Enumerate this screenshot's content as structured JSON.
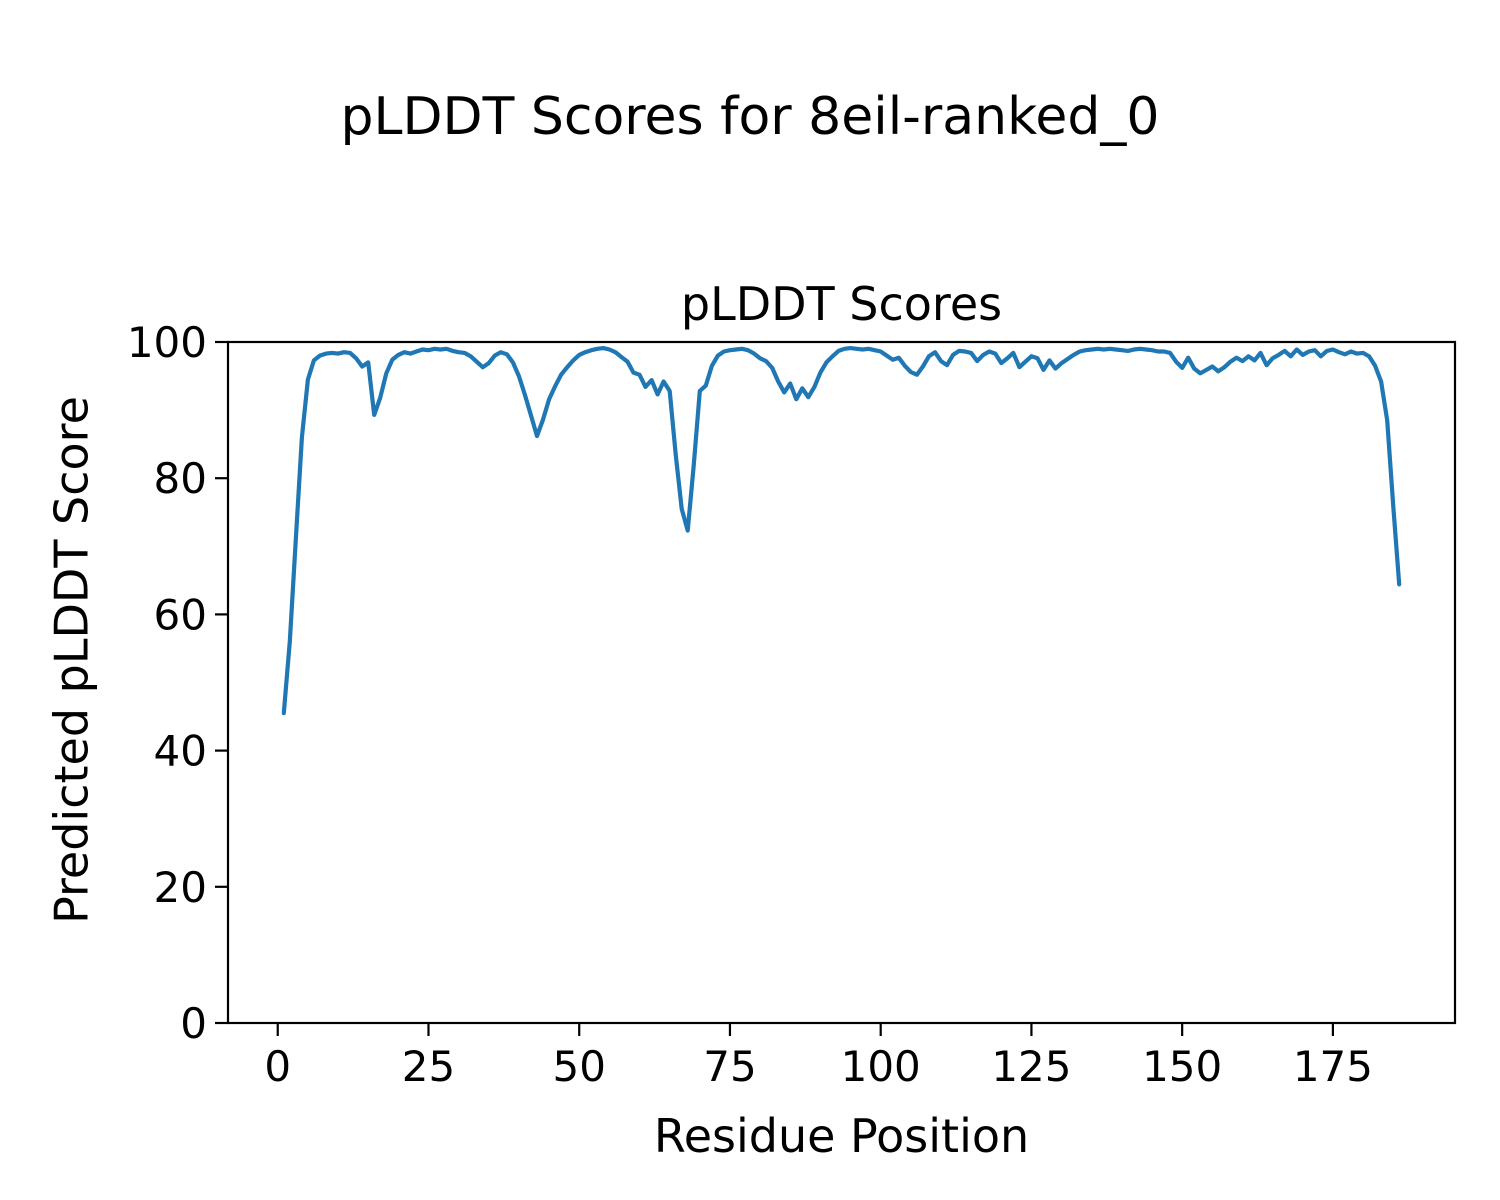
{
  "figure": {
    "title": "pLDDT Scores for 8eil-ranked_0"
  },
  "chart_data": {
    "type": "line",
    "title": "pLDDT Scores",
    "xlabel": "Residue Position",
    "ylabel": "Predicted pLDDT Score",
    "grid": false,
    "legend": "none",
    "line_color": "#1f77b4",
    "axis_color": "#000000",
    "background_color": "#ffffff",
    "xlim": [
      -8.25,
      195.25
    ],
    "ylim": [
      0,
      100
    ],
    "xticks": [
      0,
      25,
      50,
      75,
      100,
      125,
      150,
      175
    ],
    "yticks": [
      0,
      20,
      40,
      60,
      80,
      100
    ],
    "x_start": 1,
    "x_step": 1,
    "series": [
      {
        "name": "pLDDT",
        "values": [
          45.5,
          56.0,
          71.0,
          86.0,
          94.5,
          97.3,
          98.0,
          98.3,
          98.4,
          98.3,
          98.5,
          98.4,
          97.6,
          96.4,
          97.0,
          89.3,
          91.8,
          95.4,
          97.4,
          98.1,
          98.5,
          98.3,
          98.6,
          98.9,
          98.8,
          99.0,
          98.9,
          99.0,
          98.7,
          98.5,
          98.4,
          97.9,
          97.1,
          96.3,
          96.9,
          98.0,
          98.5,
          98.2,
          97.0,
          95.0,
          92.2,
          89.2,
          86.2,
          88.6,
          91.6,
          93.5,
          95.2,
          96.3,
          97.3,
          98.1,
          98.5,
          98.8,
          99.0,
          99.1,
          98.9,
          98.5,
          97.8,
          97.1,
          95.5,
          95.2,
          93.4,
          94.4,
          92.3,
          94.2,
          92.8,
          83.5,
          75.5,
          72.3,
          82.0,
          92.8,
          93.6,
          96.5,
          98.0,
          98.6,
          98.8,
          98.9,
          99.0,
          98.8,
          98.3,
          97.6,
          97.2,
          96.2,
          94.2,
          92.6,
          93.9,
          91.6,
          93.2,
          91.9,
          93.4,
          95.5,
          97.0,
          97.9,
          98.7,
          99.0,
          99.1,
          99.0,
          98.9,
          99.0,
          98.8,
          98.6,
          98.0,
          97.4,
          97.7,
          96.5,
          95.6,
          95.2,
          96.4,
          97.9,
          98.5,
          97.2,
          96.6,
          98.1,
          98.7,
          98.6,
          98.4,
          97.2,
          98.1,
          98.6,
          98.3,
          96.9,
          97.6,
          98.4,
          96.3,
          97.1,
          97.9,
          97.6,
          95.9,
          97.3,
          96.1,
          96.9,
          97.5,
          98.1,
          98.6,
          98.8,
          98.9,
          99.0,
          98.9,
          99.0,
          98.9,
          98.8,
          98.7,
          98.9,
          99.0,
          98.9,
          98.8,
          98.6,
          98.6,
          98.4,
          97.1,
          96.2,
          97.7,
          96.1,
          95.4,
          95.9,
          96.4,
          95.7,
          96.3,
          97.1,
          97.7,
          97.2,
          97.9,
          97.3,
          98.4,
          96.6,
          97.6,
          98.1,
          98.7,
          97.9,
          98.9,
          98.1,
          98.6,
          98.8,
          97.9,
          98.7,
          98.9,
          98.5,
          98.2,
          98.6,
          98.3,
          98.4,
          97.9,
          96.5,
          94.2,
          88.5,
          76.0,
          64.4
        ]
      }
    ]
  }
}
